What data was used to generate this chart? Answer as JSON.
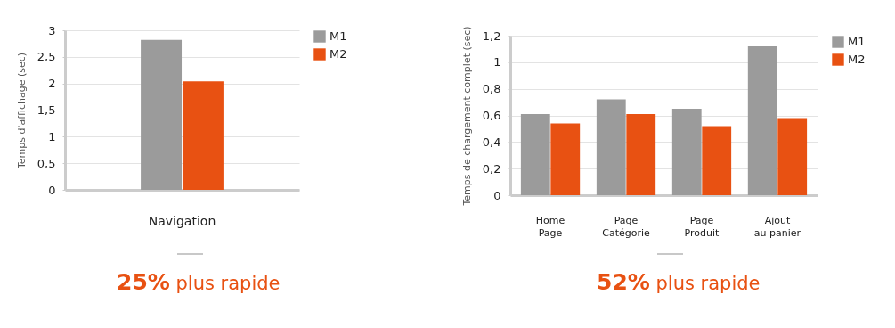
{
  "chart_data": [
    {
      "type": "bar",
      "ylabel": "Temps d'affichage (sec)",
      "categories": [
        "Navigation"
      ],
      "series": [
        {
          "name": "M1",
          "color": "#9b9b9b",
          "values": [
            2.82
          ]
        },
        {
          "name": "M2",
          "color": "#e85112",
          "values": [
            2.04
          ]
        }
      ],
      "ylim": [
        0,
        3
      ],
      "yticks": [
        0,
        {
          "value": 0.5,
          "label": "0,5"
        },
        1,
        {
          "value": 1.5,
          "label": "1,5"
        },
        2,
        {
          "value": 2.5,
          "label": "2,5"
        },
        3
      ],
      "grid": "y",
      "legend": "top right",
      "annotations": [
        "25% plus rapide"
      ]
    },
    {
      "type": "bar",
      "ylabel": "Temps de chargement complet (sec)",
      "categories": [
        "Home Page",
        "Page Catégorie",
        "Page Produit",
        "Ajout au panier"
      ],
      "series": [
        {
          "name": "M1",
          "color": "#9b9b9b",
          "values": [
            0.61,
            0.72,
            0.65,
            1.12
          ]
        },
        {
          "name": "M2",
          "color": "#e85112",
          "values": [
            0.54,
            0.61,
            0.52,
            0.58
          ]
        }
      ],
      "ylim": [
        0,
        1.2
      ],
      "yticks": [
        0,
        {
          "value": 0.2,
          "label": "0,2"
        },
        {
          "value": 0.4,
          "label": "0,4"
        },
        {
          "value": 0.6,
          "label": "0,6"
        },
        {
          "value": 0.8,
          "label": "0,8"
        },
        1,
        {
          "value": 1.2,
          "label": "1,2"
        }
      ],
      "grid": "y",
      "legend": "top right",
      "annotations": [
        "52% plus rapide"
      ]
    }
  ]
}
